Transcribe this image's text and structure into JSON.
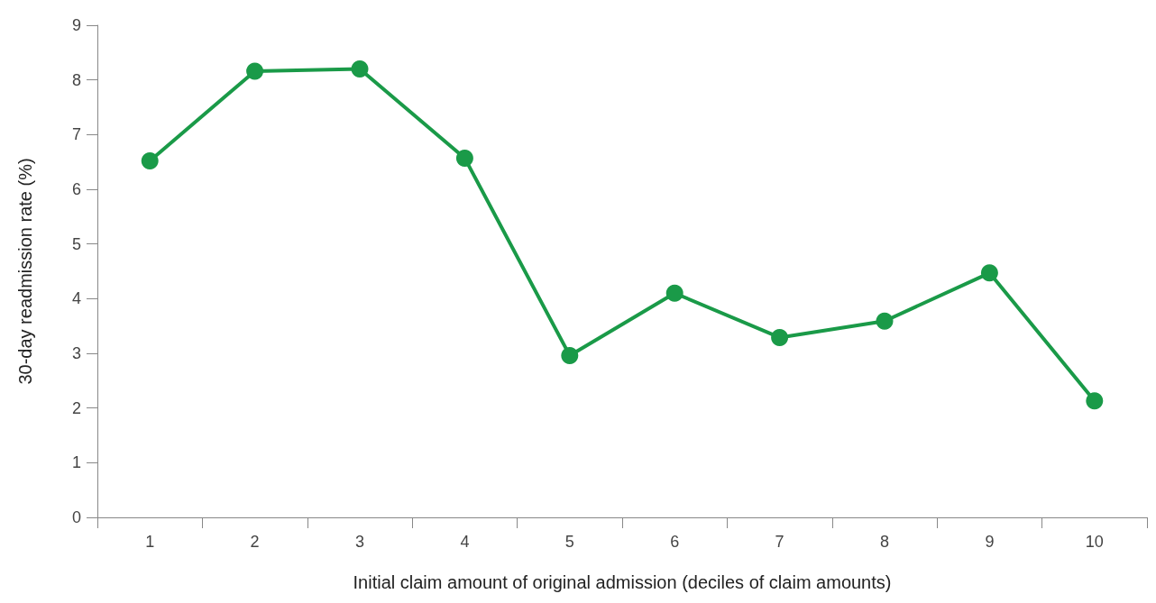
{
  "chart_data": {
    "type": "line",
    "xlabel": "Initial claim amount of original admission (deciles of claim amounts)",
    "ylabel": "30-day readmission rate (%)",
    "categories": [
      "1",
      "2",
      "3",
      "4",
      "5",
      "6",
      "7",
      "8",
      "9",
      "10"
    ],
    "series": [
      {
        "color": "#1a9a48",
        "values": [
          6.52,
          8.16,
          8.2,
          6.57,
          2.96,
          4.1,
          3.29,
          3.59,
          4.47,
          2.13
        ]
      }
    ],
    "ylim": [
      0,
      9
    ],
    "yticks": [
      0,
      1,
      2,
      3,
      4,
      5,
      6,
      7,
      8,
      9
    ],
    "grid": false,
    "marker": "circle",
    "line_style": "solid"
  }
}
